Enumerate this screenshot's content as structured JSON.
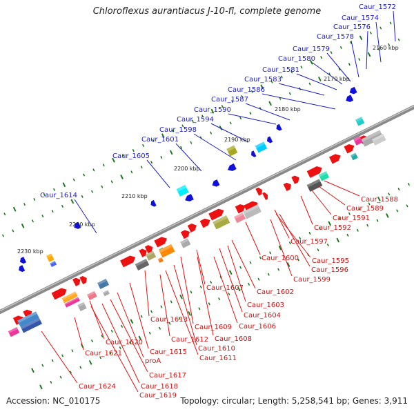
{
  "header": {
    "title": "Chloroflexus aurantiacus J-10-fl, complete genome"
  },
  "footer": {
    "accession": "Accession: NC_010175",
    "summary": "Topology: circular; Length: 5,258,541 bp; Genes: 3,911"
  },
  "colors": {
    "backbone": "#8a8a8a",
    "label_upper": "#1a1acc",
    "label_lower": "#cc1111",
    "leader_upper": "#1a1acc",
    "leader_lower": "#dd1111",
    "tick": "#1a7a1a"
  },
  "axis": {
    "kbp_labels": [
      "2160 kbp",
      "2170 kbp",
      "2180 kbp",
      "2190 kbp",
      "2200 kbp",
      "2210 kbp",
      "2220 kbp",
      "2230 kbp"
    ]
  },
  "labels_upper": [
    "Caur_1572",
    "Caur_1574",
    "Caur_1576",
    "Caur_1578",
    "Caur_1579",
    "Caur_1580",
    "Caur_1581",
    "Caur_1583",
    "Caur_1586",
    "Caur_1587",
    "Caur_1590",
    "Caur_1594",
    "Caur_1598",
    "Caur_1601",
    "Caur_1605",
    "Caur_1614"
  ],
  "labels_lower": [
    "Caur_1588",
    "Caur_1589",
    "Caur_1591",
    "Caur_1592",
    "Caur_1597",
    "Caur_1595",
    "Caur_1596",
    "Caur_1599",
    "Caur_1600",
    "Caur_1602",
    "Caur_1603",
    "Caur_1604",
    "Caur_1606",
    "Caur_1607",
    "Caur_1608",
    "Caur_1609",
    "Caur_1610",
    "Caur_1611",
    "Caur_1612",
    "Caur_1613",
    "Caur_1615",
    "proA",
    "Caur_1617",
    "Caur_1618",
    "Caur_1619",
    "Caur_1620",
    "Caur_1621",
    "Caur_1624"
  ]
}
